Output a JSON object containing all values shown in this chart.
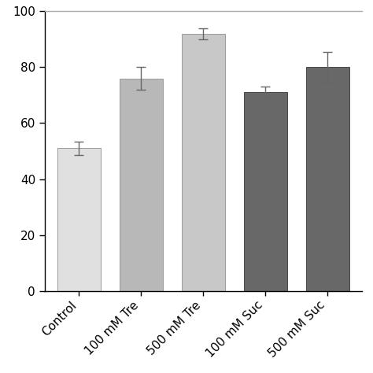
{
  "categories": [
    "Control",
    "100 mM Tre",
    "500 mM Tre",
    "100 mM Suc",
    "500 mM Suc"
  ],
  "values": [
    51,
    76,
    92,
    71,
    80
  ],
  "errors": [
    2.5,
    4.0,
    2.0,
    2.0,
    5.5
  ],
  "bar_colors": [
    "#e0e0e0",
    "#b8b8b8",
    "#c8c8c8",
    "#686868",
    "#686868"
  ],
  "bar_edgecolors": [
    "#999999",
    "#999999",
    "#999999",
    "#484848",
    "#484848"
  ],
  "ylim": [
    0,
    100
  ],
  "yticks": [
    0,
    20,
    40,
    60,
    80,
    100
  ],
  "background_color": "#ffffff",
  "error_capsize": 4,
  "error_color": "#666666",
  "bar_width": 0.7,
  "tick_labelsize": 11,
  "axis_linewidth": 1.0
}
